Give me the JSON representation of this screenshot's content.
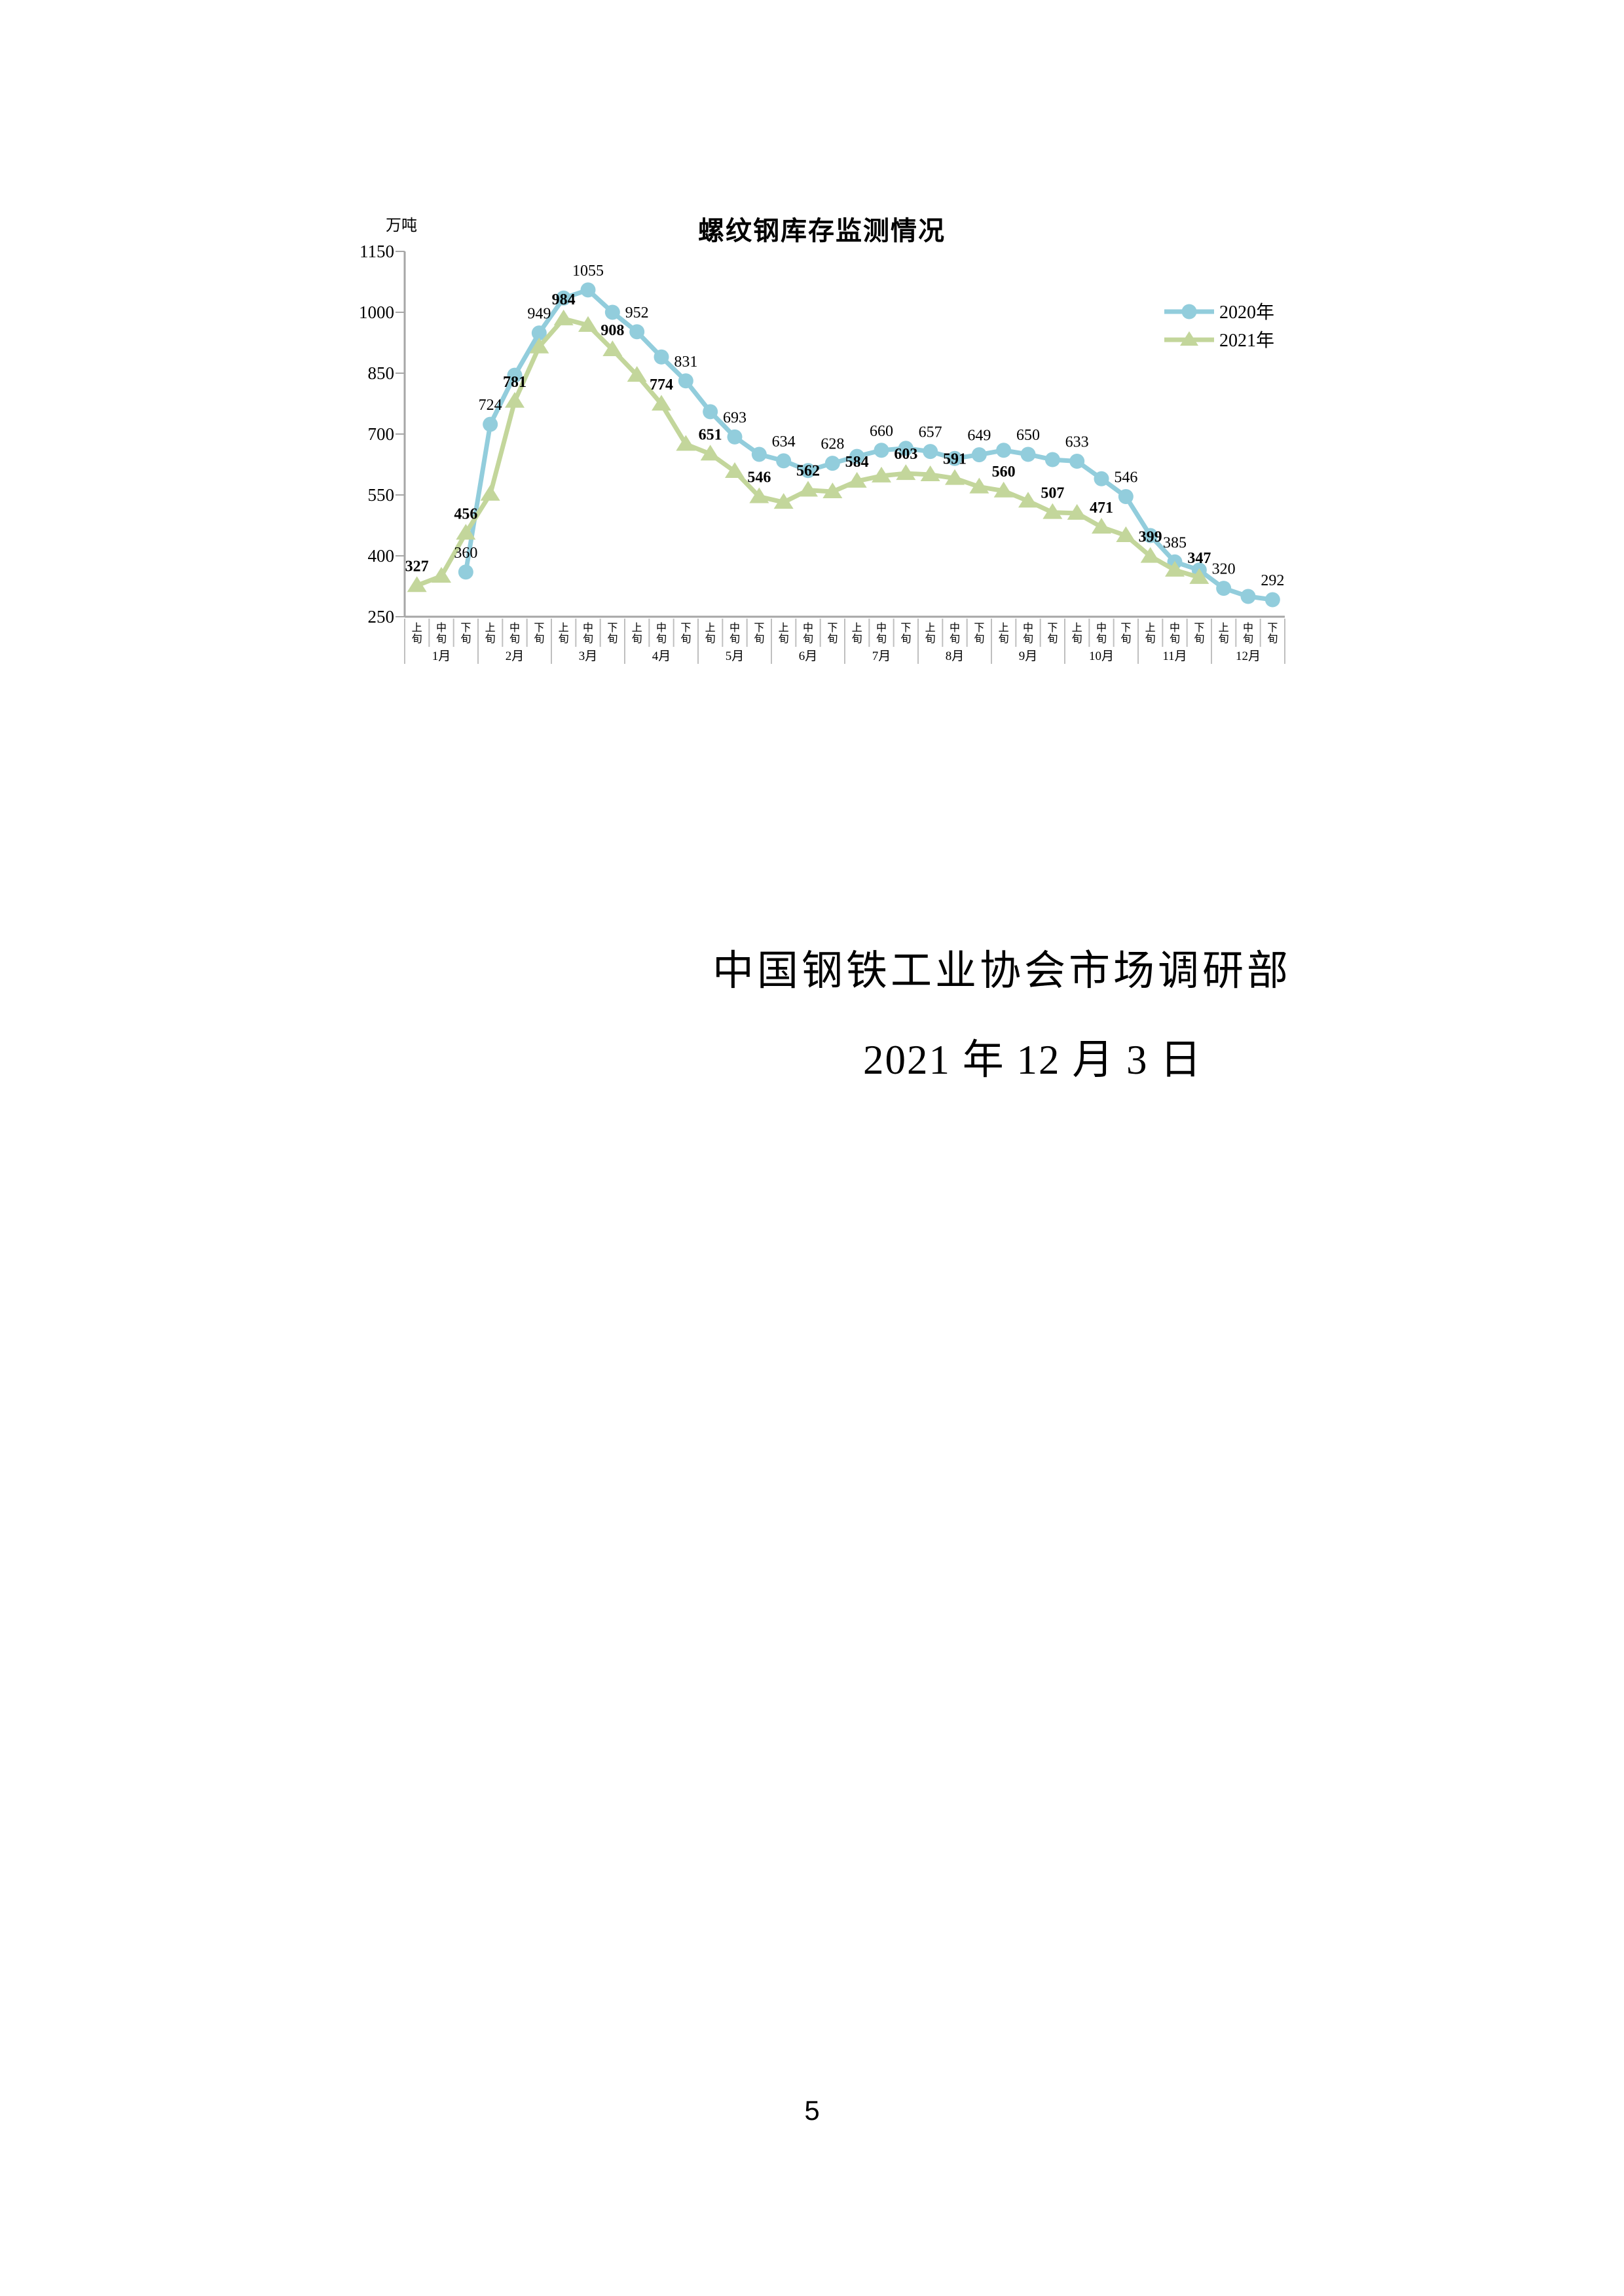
{
  "chart": {
    "title": "螺纹钢库存监测情况",
    "unit_label": "万吨",
    "legend": [
      {
        "label": "2020年",
        "color": "#92CDDC",
        "marker": "circle"
      },
      {
        "label": "2021年",
        "color": "#C3D69B",
        "marker": "triangle"
      }
    ]
  },
  "chart_data": {
    "type": "line",
    "title": "螺纹钢库存监测情况",
    "y_unit": "万吨",
    "ylim": [
      250,
      1150
    ],
    "y_ticks": [
      250,
      400,
      550,
      700,
      850,
      1000,
      1150
    ],
    "grid": false,
    "legend_position": "top-right",
    "months": [
      "1月",
      "2月",
      "3月",
      "4月",
      "5月",
      "6月",
      "7月",
      "8月",
      "9月",
      "10月",
      "11月",
      "12月"
    ],
    "periods_per_month": [
      "上旬",
      "中旬",
      "下旬"
    ],
    "series": [
      {
        "name": "2020年",
        "color": "#92CDDC",
        "marker": "circle",
        "start_index": 2,
        "values": [
          360,
          724,
          845,
          949,
          1035,
          1055,
          1000,
          952,
          890,
          831,
          755,
          693,
          650,
          634,
          610,
          628,
          645,
          660,
          665,
          657,
          640,
          649,
          660,
          650,
          637,
          633,
          590,
          546,
          450,
          385,
          365,
          320,
          300,
          292
        ],
        "labels": [
          "360",
          "724",
          null,
          "949",
          null,
          "1055",
          null,
          "952",
          null,
          "831",
          null,
          "693",
          null,
          "634",
          null,
          "628",
          null,
          "660",
          null,
          "657",
          null,
          "649",
          null,
          "650",
          null,
          "633",
          null,
          "546",
          null,
          "385",
          null,
          "320",
          null,
          "292"
        ]
      },
      {
        "name": "2021年",
        "color": "#C3D69B",
        "marker": "triangle",
        "start_index": 0,
        "values": [
          327,
          350,
          456,
          552,
          781,
          915,
          984,
          968,
          908,
          845,
          774,
          675,
          651,
          608,
          546,
          532,
          562,
          558,
          584,
          597,
          603,
          600,
          591,
          570,
          560,
          535,
          507,
          505,
          471,
          450,
          399,
          365,
          347
        ],
        "labels": [
          "327",
          null,
          "456",
          null,
          "781",
          null,
          "984",
          null,
          "908",
          null,
          "774",
          null,
          "651",
          null,
          "546",
          null,
          "562",
          null,
          "584",
          null,
          "603",
          null,
          "591",
          null,
          "560",
          null,
          "507",
          null,
          "471",
          null,
          "399",
          null,
          "347"
        ]
      }
    ]
  },
  "footer": {
    "org_line": "中国钢铁工业协会市场调研部",
    "date_line": "2021 年 12 月 3 日"
  },
  "page": {
    "number": "5"
  }
}
